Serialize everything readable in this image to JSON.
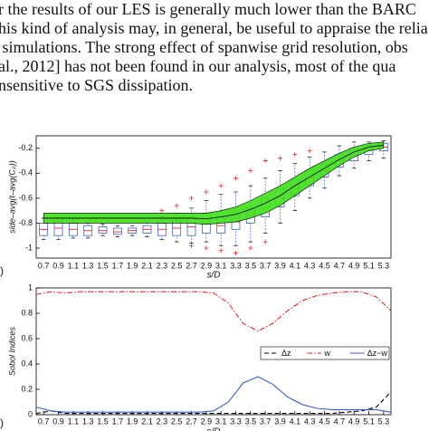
{
  "text_lines": [
    "r the results of our LES is generally much lower than the BARC",
    "his kind of analysis may, in general, be useful to appraise the relia",
    " simulations. The strong effect of spanwise grid resolution, obs",
    "al., 2012] has not been found in our analysis, most of the qua",
    "nsensitive to SGS dissipation."
  ],
  "panel_labels": [
    ")",
    ")"
  ],
  "chart_data": [
    {
      "type": "box",
      "ylabel": "side–avg(t–avg(Cₚ))",
      "xlabel": "s/D",
      "categories": [
        "0.7",
        "0.9",
        "1.1",
        "1.3",
        "1.5",
        "1.7",
        "1.9",
        "2.1",
        "2.3",
        "2.5",
        "2.7",
        "2.9",
        "3.1",
        "3.3",
        "3.5",
        "3.7",
        "3.9",
        "4.1",
        "4.3",
        "4.5",
        "4.7",
        "4.9",
        "5.1",
        "5.3"
      ],
      "whisker_high": [
        -0.76,
        -0.76,
        -0.77,
        -0.8,
        -0.81,
        -0.82,
        -0.82,
        -0.79,
        -0.75,
        -0.72,
        -0.68,
        -0.62,
        -0.57,
        -0.55,
        -0.5,
        -0.44,
        -0.38,
        -0.32,
        -0.27,
        -0.23,
        -0.18,
        -0.15,
        -0.15,
        -0.14
      ],
      "q3": [
        -0.8,
        -0.79,
        -0.8,
        -0.82,
        -0.83,
        -0.84,
        -0.84,
        -0.82,
        -0.8,
        -0.78,
        -0.75,
        -0.72,
        -0.75,
        -0.72,
        -0.68,
        -0.6,
        -0.52,
        -0.45,
        -0.38,
        -0.33,
        -0.25,
        -0.2,
        -0.18,
        -0.16
      ],
      "median": [
        -0.85,
        -0.84,
        -0.85,
        -0.86,
        -0.86,
        -0.87,
        -0.86,
        -0.85,
        -0.85,
        -0.84,
        -0.83,
        -0.8,
        -0.82,
        -0.79,
        -0.74,
        -0.68,
        -0.6,
        -0.52,
        -0.44,
        -0.38,
        -0.3,
        -0.25,
        -0.21,
        -0.19
      ],
      "q1": [
        -0.9,
        -0.9,
        -0.9,
        -0.9,
        -0.88,
        -0.89,
        -0.88,
        -0.88,
        -0.9,
        -0.9,
        -0.9,
        -0.88,
        -0.88,
        -0.85,
        -0.8,
        -0.75,
        -0.67,
        -0.58,
        -0.5,
        -0.43,
        -0.35,
        -0.3,
        -0.25,
        -0.22
      ],
      "whisker_low": [
        -0.93,
        -0.93,
        -0.92,
        -0.92,
        -0.9,
        -0.91,
        -0.9,
        -0.91,
        -0.93,
        -0.95,
        -0.96,
        -0.95,
        -0.98,
        -0.98,
        -0.95,
        -0.88,
        -0.8,
        -0.7,
        -0.6,
        -0.52,
        -0.42,
        -0.36,
        -0.3,
        -0.28
      ],
      "outliers": [
        [],
        [],
        [],
        [],
        [],
        [],
        [],
        [],
        [
          -0.7
        ],
        [
          -0.66
        ],
        [
          -0.6,
          -0.98
        ],
        [
          -0.55,
          -1.0
        ],
        [
          -0.5,
          -1.02
        ],
        [
          -0.44,
          -1.04
        ],
        [
          -0.38,
          -1.0
        ],
        [
          -0.3,
          -0.95
        ],
        [
          -0.28
        ],
        [
          -0.25
        ],
        [
          -0.22
        ],
        [],
        [],
        [],
        [],
        []
      ],
      "band_upper": [
        -0.72,
        -0.72,
        -0.72,
        -0.72,
        -0.72,
        -0.72,
        -0.72,
        -0.72,
        -0.72,
        -0.72,
        -0.72,
        -0.72,
        -0.7,
        -0.67,
        -0.62,
        -0.56,
        -0.5,
        -0.43,
        -0.36,
        -0.3,
        -0.24,
        -0.19,
        -0.16,
        -0.15
      ],
      "band_lower": [
        -0.8,
        -0.8,
        -0.8,
        -0.8,
        -0.8,
        -0.8,
        -0.8,
        -0.8,
        -0.8,
        -0.8,
        -0.8,
        -0.81,
        -0.8,
        -0.79,
        -0.76,
        -0.72,
        -0.66,
        -0.58,
        -0.5,
        -0.42,
        -0.34,
        -0.27,
        -0.22,
        -0.2
      ],
      "mean": [
        -0.76,
        -0.76,
        -0.76,
        -0.76,
        -0.76,
        -0.76,
        -0.76,
        -0.76,
        -0.76,
        -0.76,
        -0.76,
        -0.765,
        -0.75,
        -0.73,
        -0.69,
        -0.64,
        -0.58,
        -0.5,
        -0.43,
        -0.36,
        -0.29,
        -0.23,
        -0.19,
        -0.175
      ],
      "box_color": "#3a5fcd",
      "median_color": "#e8262a",
      "outlier_color": "#e8262a",
      "band_color": "#3fe01a",
      "ylim": [
        -1.08,
        -0.1
      ],
      "yticks": [
        -1,
        -0.8,
        -0.6,
        -0.4,
        -0.2
      ]
    },
    {
      "type": "line",
      "ylabel": "Sobol Indices",
      "xlabel": "s/D",
      "x": [
        0.6,
        0.8,
        1.0,
        1.2,
        1.4,
        1.6,
        1.8,
        2.0,
        2.2,
        2.4,
        2.6,
        2.8,
        3.0,
        3.2,
        3.4,
        3.6,
        3.8,
        4.0,
        4.2,
        4.4,
        4.6,
        4.8,
        5.0,
        5.2,
        5.4
      ],
      "series": [
        {
          "name": "Δz",
          "color": "#000000",
          "linestyle": "dashed",
          "values": [
            0.01,
            0.03,
            0.01,
            0.01,
            0.01,
            0.01,
            0.01,
            0.01,
            0.01,
            0.01,
            0.01,
            0.01,
            0.01,
            0.01,
            0.01,
            0.01,
            0.01,
            0.01,
            0.01,
            0.01,
            0.01,
            0.02,
            0.03,
            0.06,
            0.18
          ]
        },
        {
          "name": "w",
          "color": "#e8262a",
          "linestyle": "dashdot",
          "values": [
            0.95,
            0.97,
            0.96,
            0.97,
            0.97,
            0.97,
            0.97,
            0.97,
            0.97,
            0.97,
            0.97,
            0.97,
            0.96,
            0.88,
            0.72,
            0.66,
            0.72,
            0.82,
            0.9,
            0.94,
            0.96,
            0.97,
            0.97,
            0.93,
            0.82
          ]
        },
        {
          "name": "Δz−w",
          "color": "#3a5fcd",
          "linestyle": "solid",
          "values": [
            0.06,
            0.03,
            0.02,
            0.02,
            0.02,
            0.02,
            0.02,
            0.02,
            0.02,
            0.02,
            0.02,
            0.02,
            0.03,
            0.1,
            0.25,
            0.3,
            0.24,
            0.14,
            0.08,
            0.05,
            0.04,
            0.04,
            0.04,
            0.04,
            0.02
          ]
        }
      ],
      "xlim": [
        0.6,
        5.4
      ],
      "xticks": [
        0.7,
        0.9,
        1.1,
        1.3,
        1.5,
        1.7,
        1.9,
        2.1,
        2.3,
        2.5,
        2.7,
        2.9,
        3.1,
        3.3,
        3.5,
        3.7,
        3.9,
        4.1,
        4.3,
        4.5,
        4.7,
        4.9,
        5.1,
        5.3
      ],
      "ylim": [
        0,
        1
      ],
      "yticks": [
        0,
        0.2,
        0.4,
        0.6,
        0.8,
        1
      ],
      "legend": "center right"
    }
  ]
}
